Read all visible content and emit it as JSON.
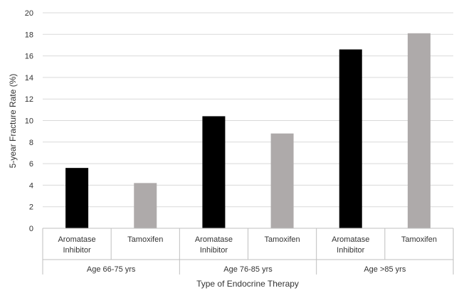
{
  "chart_data": {
    "type": "bar",
    "title": "",
    "xlabel": "Type of Endocrine Therapy",
    "ylabel": "5-year Fracture Rate (%)",
    "ylim": [
      0,
      20
    ],
    "yticks": [
      "0",
      "2",
      "4",
      "6",
      "8",
      "10",
      "12",
      "14",
      "16",
      "18",
      "20"
    ],
    "grid": true,
    "legend": "none",
    "groups": [
      {
        "label": "Age 66-75 yrs",
        "bars": [
          {
            "category": [
              "Aromatase",
              "Inhibitor"
            ],
            "value": 5.6,
            "color": "#000000"
          },
          {
            "category": [
              "Tamoxifen"
            ],
            "value": 4.2,
            "color": "#aeaaaa"
          }
        ]
      },
      {
        "label": "Age 76-85 yrs",
        "bars": [
          {
            "category": [
              "Aromatase",
              "Inhibitor"
            ],
            "value": 10.4,
            "color": "#000000"
          },
          {
            "category": [
              "Tamoxifen"
            ],
            "value": 8.8,
            "color": "#aeaaaa"
          }
        ]
      },
      {
        "label": "Age >85 yrs",
        "bars": [
          {
            "category": [
              "Aromatase",
              "Inhibitor"
            ],
            "value": 16.6,
            "color": "#000000"
          },
          {
            "category": [
              "Tamoxifen"
            ],
            "value": 18.1,
            "color": "#aeaaaa"
          }
        ]
      }
    ]
  }
}
